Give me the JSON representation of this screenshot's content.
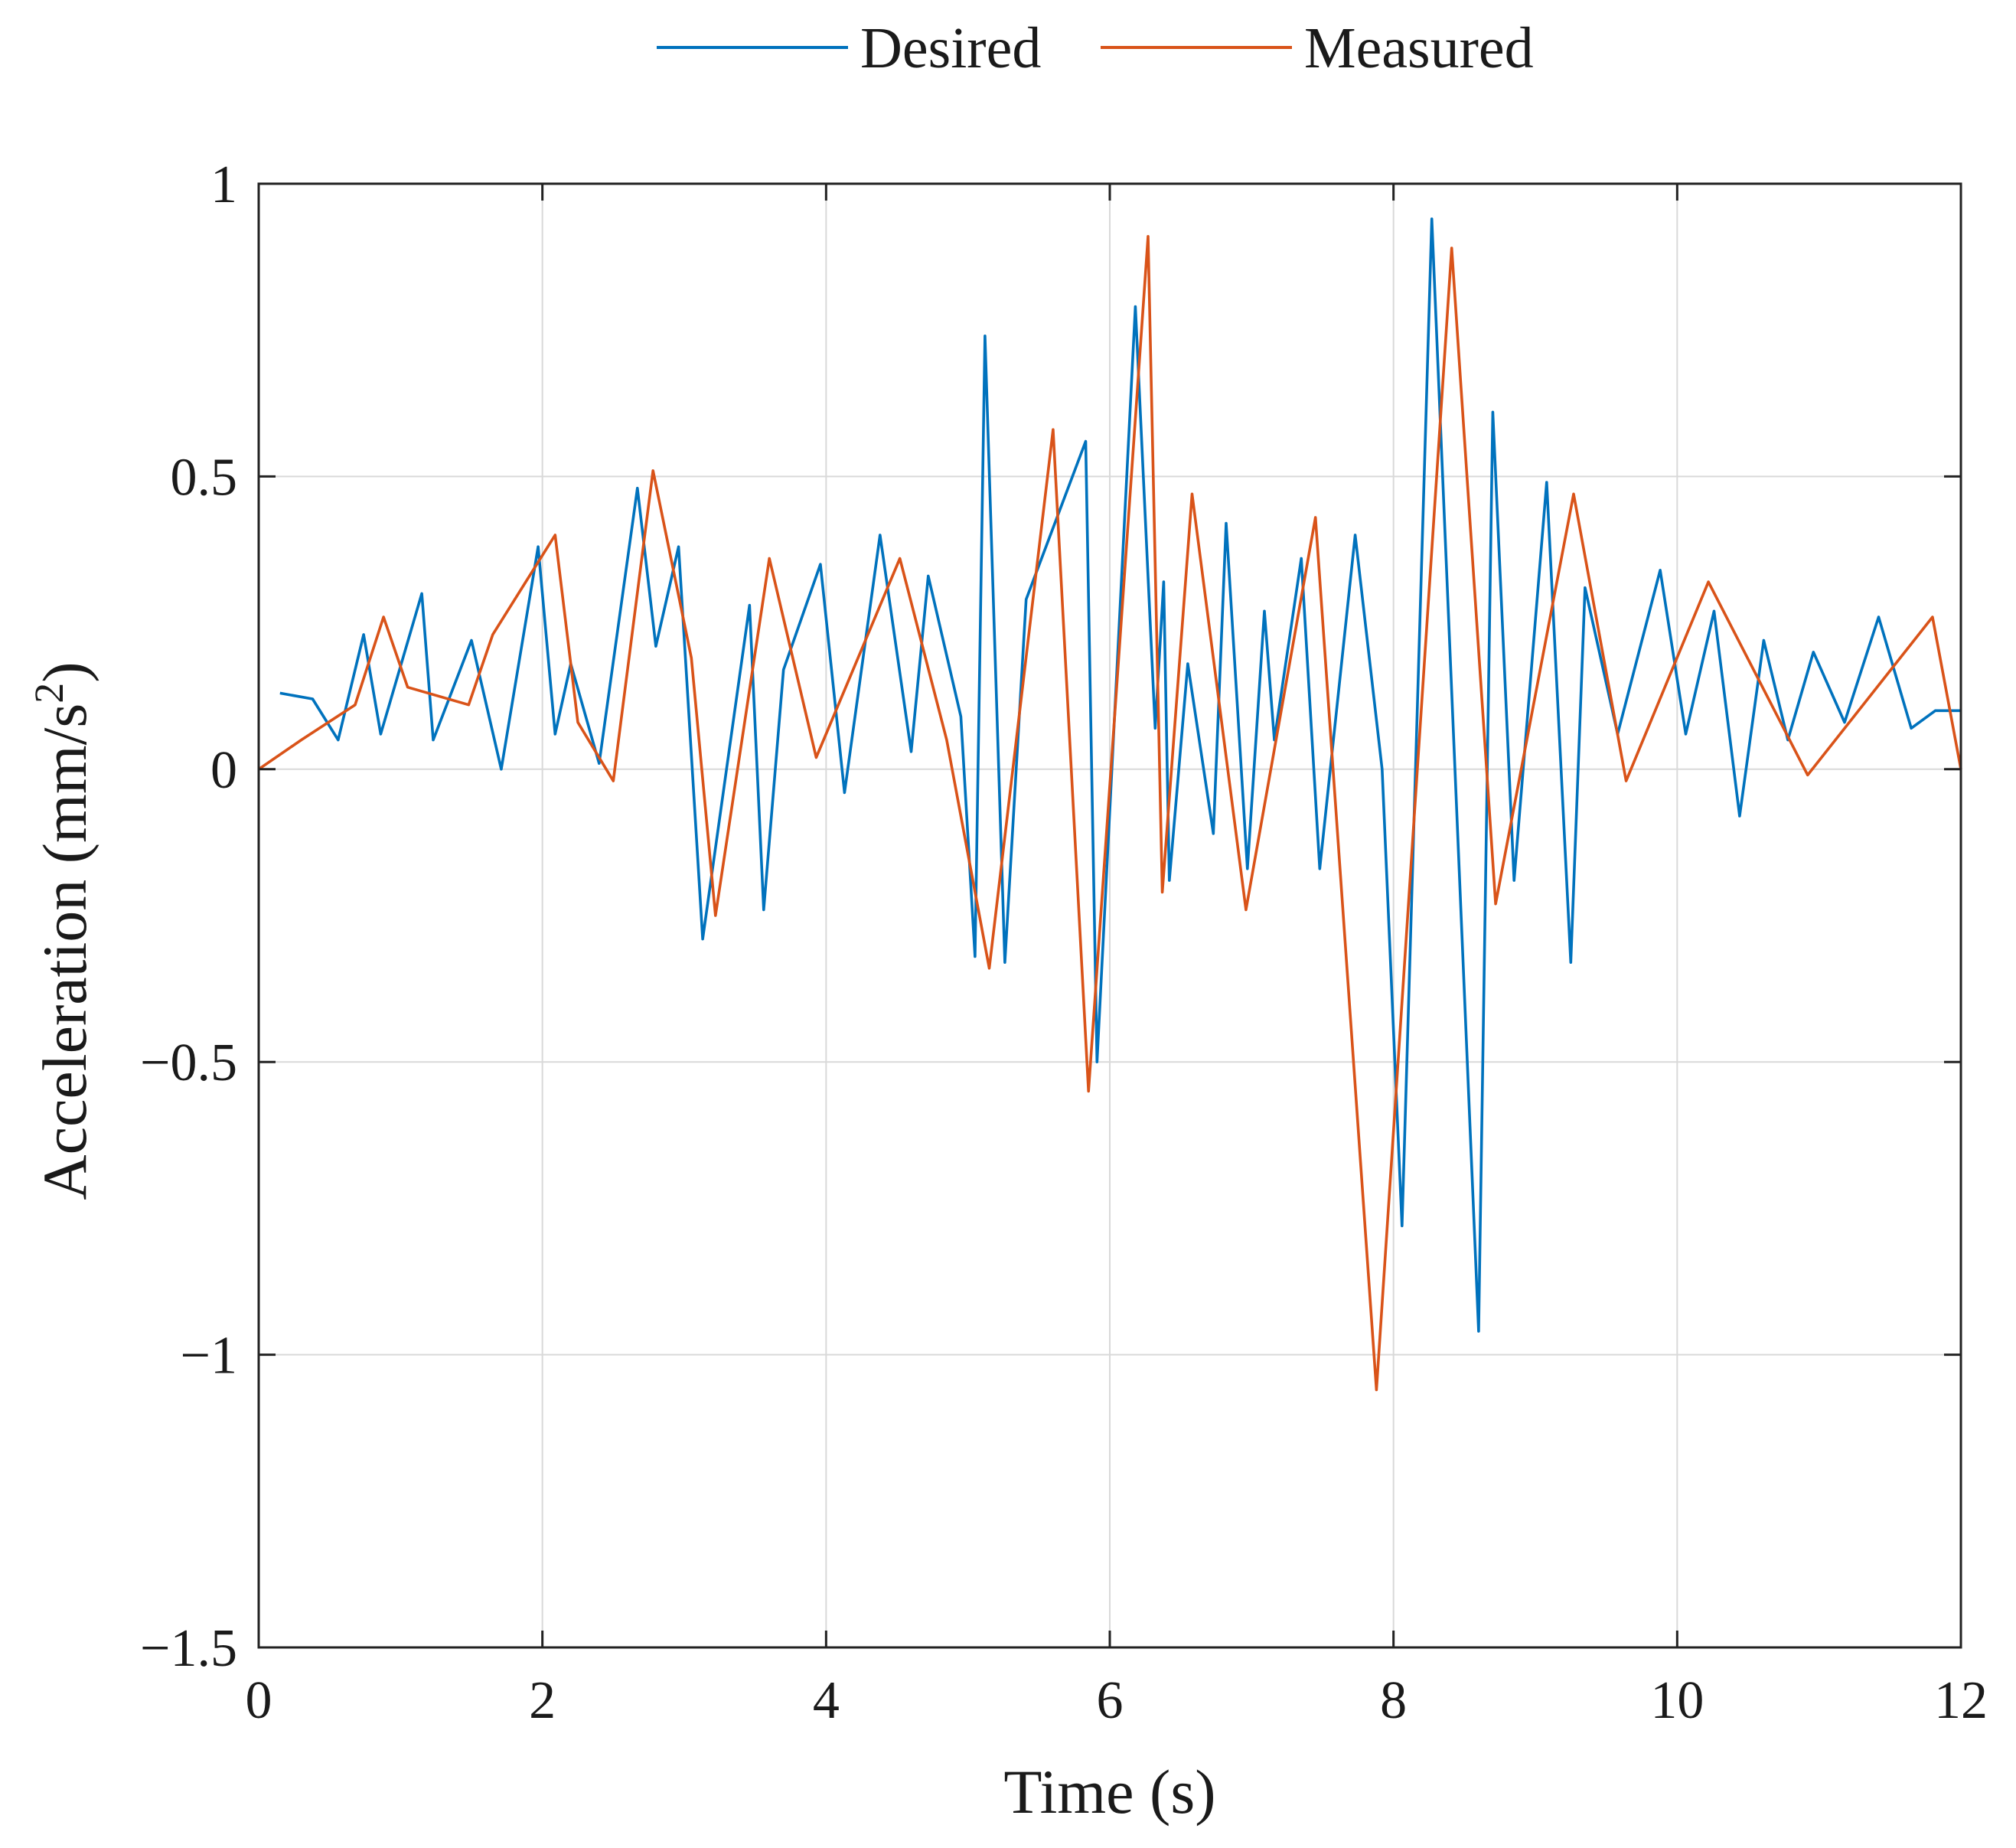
{
  "chart_data": {
    "type": "line",
    "title": "",
    "xlabel": "Time (s)",
    "ylabel": "Acceleration (mm/s",
    "ylabel_superscript": "2",
    "ylabel_suffix": ")",
    "xlim": [
      0,
      12
    ],
    "ylim": [
      -1.5,
      1
    ],
    "xticks": [
      0,
      2,
      4,
      6,
      8,
      10,
      12
    ],
    "yticks": [
      -1.5,
      -1,
      -0.5,
      0,
      0.5,
      1
    ],
    "xtick_labels": [
      "0",
      "2",
      "4",
      "6",
      "8",
      "10",
      "12"
    ],
    "ytick_labels": [
      "−1.5",
      "−1",
      "−0.5",
      "0",
      "0.5",
      "1"
    ],
    "grid": true,
    "legend_position": "top-center",
    "series": [
      {
        "name": "Desired",
        "color": "#0072BD",
        "x": [
          0.15,
          0.38,
          0.56,
          0.74,
          0.86,
          1.15,
          1.23,
          1.5,
          1.71,
          1.97,
          2.09,
          2.2,
          2.4,
          2.67,
          2.8,
          2.96,
          3.13,
          3.46,
          3.56,
          3.7,
          3.96,
          4.13,
          4.38,
          4.6,
          4.72,
          4.95,
          5.05,
          5.12,
          5.26,
          5.41,
          5.83,
          5.91,
          6.18,
          6.32,
          6.38,
          6.42,
          6.55,
          6.73,
          6.82,
          6.97,
          7.09,
          7.16,
          7.35,
          7.48,
          7.73,
          7.92,
          8.06,
          8.27,
          8.6,
          8.7,
          8.85,
          9.08,
          9.25,
          9.35,
          9.58,
          9.88,
          10.06,
          10.26,
          10.44,
          10.61,
          10.78,
          10.96,
          11.18,
          11.42,
          11.65,
          11.82,
          12.0
        ],
        "values": [
          0.13,
          0.12,
          0.05,
          0.23,
          0.06,
          0.3,
          0.05,
          0.22,
          0.0,
          0.38,
          0.06,
          0.18,
          0.01,
          0.48,
          0.21,
          0.38,
          -0.29,
          0.28,
          -0.24,
          0.17,
          0.35,
          -0.04,
          0.4,
          0.03,
          0.33,
          0.09,
          -0.32,
          0.74,
          -0.33,
          0.29,
          0.56,
          -0.5,
          0.79,
          0.07,
          0.32,
          -0.19,
          0.18,
          -0.11,
          0.42,
          -0.17,
          0.27,
          0.05,
          0.36,
          -0.17,
          0.4,
          0.0,
          -0.78,
          0.94,
          -0.96,
          0.61,
          -0.19,
          0.49,
          -0.33,
          0.31,
          0.06,
          0.34,
          0.06,
          0.27,
          -0.08,
          0.22,
          0.05,
          0.2,
          0.08,
          0.26,
          0.07,
          0.1,
          0.1
        ]
      },
      {
        "name": "Measured",
        "color": "#D95319",
        "x": [
          0.0,
          0.3,
          0.68,
          0.88,
          1.05,
          1.48,
          1.65,
          2.09,
          2.25,
          2.5,
          2.78,
          3.05,
          3.22,
          3.6,
          3.93,
          4.52,
          4.85,
          5.15,
          5.6,
          5.85,
          6.27,
          6.37,
          6.58,
          6.96,
          7.45,
          7.88,
          8.41,
          8.72,
          9.27,
          9.64,
          10.22,
          10.92,
          11.8,
          12.0
        ],
        "values": [
          0.0,
          0.05,
          0.11,
          0.26,
          0.14,
          0.11,
          0.23,
          0.4,
          0.08,
          -0.02,
          0.51,
          0.19,
          -0.25,
          0.36,
          0.02,
          0.36,
          0.05,
          -0.34,
          0.58,
          -0.55,
          0.91,
          -0.21,
          0.47,
          -0.24,
          0.43,
          -1.06,
          0.89,
          -0.23,
          0.47,
          -0.02,
          0.32,
          -0.01,
          0.26,
          0.0
        ]
      }
    ]
  }
}
